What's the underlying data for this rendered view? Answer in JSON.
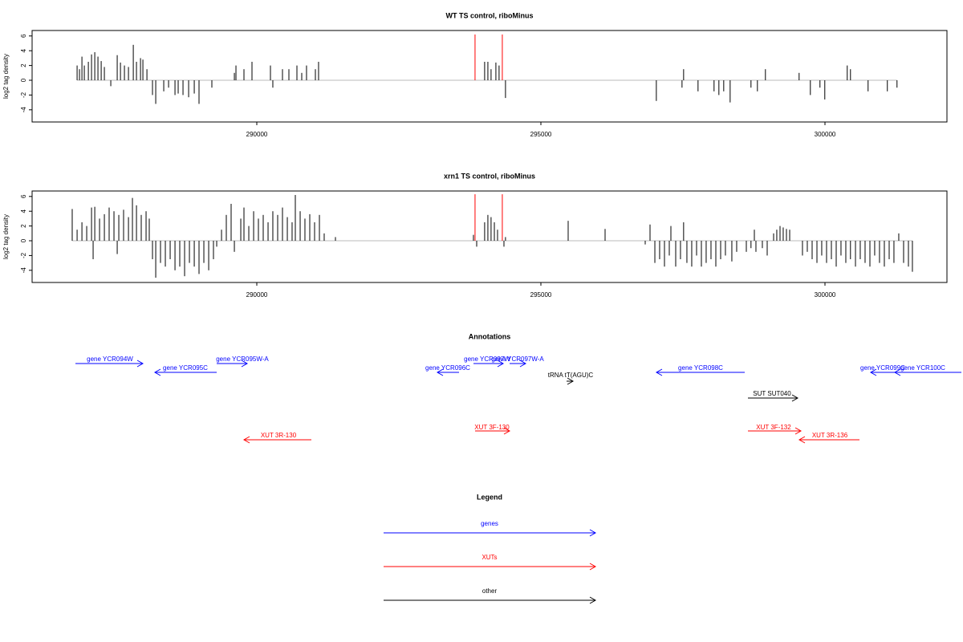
{
  "chart_data": [
    {
      "type": "bar",
      "title": "WT TS control, riboMinus",
      "ylabel": "log2 tag density",
      "xlim": [
        286045,
        302147
      ],
      "ylim": [
        -5.65,
        6.74
      ],
      "xticks": [
        290000,
        295000,
        300000
      ],
      "yticks": [
        -4,
        -2,
        0,
        2,
        4,
        6
      ],
      "series": [
        {
          "color": "#000000",
          "x": [
            286837,
            286879,
            286922,
            286964,
            287035,
            287091,
            287148,
            287204,
            287261,
            287317,
            287430,
            287543,
            287600,
            287670,
            287741,
            287826,
            287882,
            287953,
            287995,
            288066,
            288164,
            288221,
            288362,
            288447,
            288560,
            288616,
            288701,
            288800,
            288899,
            288983,
            289209,
            289605,
            289633,
            289774,
            289915,
            290240,
            290282,
            290452,
            290565,
            290706,
            290791,
            290875,
            291031,
            291087,
            294010,
            294067,
            294123,
            294208,
            294264,
            294377,
            297032,
            297484,
            297512,
            297766,
            298048,
            298133,
            298218,
            298331,
            298698,
            298811,
            298952,
            299545,
            299743,
            299912,
            299997,
            300392,
            300449,
            300759,
            301098,
            301268
          ],
          "values": [
            2,
            1.5,
            3.2,
            2,
            2.5,
            3.5,
            3.8,
            3.2,
            2.6,
            1.8,
            -0.8,
            3.4,
            2.4,
            2,
            1.8,
            4.8,
            2.5,
            3,
            2.8,
            1.5,
            -2,
            -3.2,
            -1.5,
            -1,
            -2,
            -1.8,
            -2,
            -2.3,
            -1.8,
            -3.2,
            -1,
            1,
            2,
            1.5,
            2.5,
            2,
            -1,
            1.5,
            1.5,
            2,
            1,
            2,
            1.5,
            2.5,
            2.5,
            2.5,
            1.5,
            2.4,
            2,
            -2.4,
            -2.8,
            -1,
            1.5,
            -1.5,
            -1.5,
            -2,
            -1.5,
            -3,
            -1,
            -1.5,
            1.5,
            1,
            -2,
            -1,
            -2.6,
            2,
            1.5,
            -1.5,
            -1.5,
            -1
          ]
        },
        {
          "color": "#ff0000",
          "x": [
            293841,
            294321
          ],
          "values": [
            6.2,
            6.2
          ]
        }
      ]
    },
    {
      "type": "bar",
      "title": "xrn1 TS control, riboMinus",
      "ylabel": "log2 tag density",
      "xlim": [
        286045,
        302147
      ],
      "ylim": [
        -5.65,
        6.74
      ],
      "xticks": [
        290000,
        295000,
        300000
      ],
      "yticks": [
        -4,
        -2,
        0,
        2,
        4,
        6
      ],
      "series": [
        {
          "color": "#000000",
          "x": [
            286751,
            286837,
            286922,
            287006,
            287091,
            287119,
            287148,
            287232,
            287317,
            287401,
            287486,
            287543,
            287571,
            287655,
            287741,
            287811,
            287882,
            287966,
            288051,
            288107,
            288164,
            288221,
            288305,
            288390,
            288475,
            288560,
            288644,
            288729,
            288814,
            288899,
            288983,
            289068,
            289153,
            289237,
            289294,
            289379,
            289463,
            289548,
            289605,
            289718,
            289774,
            289859,
            289944,
            290028,
            290113,
            290198,
            290282,
            290367,
            290452,
            290537,
            290621,
            290678,
            290763,
            290847,
            290932,
            291017,
            291102,
            291186,
            291384,
            293813,
            293870,
            294010,
            294067,
            294123,
            294181,
            294237,
            294350,
            294377,
            295480,
            296130,
            296836,
            296921,
            297006,
            297090,
            297175,
            297260,
            297288,
            297373,
            297457,
            297512,
            297570,
            297655,
            297740,
            297825,
            297909,
            297994,
            298079,
            298164,
            298248,
            298361,
            298446,
            298616,
            298698,
            298757,
            298785,
            298898,
            298983,
            299096,
            299152,
            299209,
            299265,
            299322,
            299379,
            299604,
            299689,
            299774,
            299859,
            299943,
            300028,
            300113,
            300198,
            300282,
            300367,
            300449,
            300537,
            300621,
            300706,
            300791,
            300875,
            300960,
            301045,
            301130,
            301214,
            301299,
            301384,
            301469,
            301539
          ],
          "values": [
            4.3,
            1.5,
            2.5,
            2,
            4.5,
            -2.5,
            4.6,
            3,
            3.6,
            4.5,
            4,
            -1.8,
            3.5,
            4.2,
            3.2,
            5.8,
            4.8,
            3.5,
            4,
            3,
            -2.5,
            -5,
            -3,
            -3.5,
            -2.5,
            -4,
            -3.5,
            -4.8,
            -3,
            -3.5,
            -4.5,
            -3,
            -4,
            -2.5,
            -0.8,
            1.5,
            3.5,
            5,
            -1.5,
            3,
            4.5,
            2,
            4,
            3,
            3.5,
            2.5,
            4,
            3.5,
            4.5,
            3.2,
            2.5,
            6.2,
            4,
            3,
            3.6,
            2.5,
            3.5,
            1,
            0.5,
            0.8,
            -0.8,
            2.5,
            3.5,
            3.2,
            2.5,
            1.5,
            -0.8,
            0.5,
            2.7,
            1.6,
            -0.5,
            2.2,
            -3,
            -2.5,
            -3.5,
            -2,
            2,
            -3.5,
            -2.5,
            2.5,
            -3,
            -3.5,
            -2,
            -3.5,
            -3,
            -2.5,
            -3.5,
            -2.5,
            -2,
            -2.8,
            -1.5,
            -1.5,
            -1,
            1.5,
            -1.5,
            -1,
            -2,
            1,
            1.5,
            2,
            1.8,
            1.6,
            1.5,
            -2,
            -1.5,
            -2.5,
            -3,
            -2,
            -3,
            -2.5,
            -3.5,
            -2,
            -3,
            -2.5,
            -3.5,
            -2.5,
            -3,
            -3.5,
            -2,
            -3,
            -3.5,
            -2.5,
            -3,
            1,
            -3,
            -3.5,
            -4.2
          ]
        },
        {
          "color": "#ff0000",
          "x": [
            293841,
            294321
          ],
          "values": [
            6.3,
            6.3
          ]
        }
      ]
    }
  ],
  "annotations": {
    "title": "Annotations",
    "items": [
      {
        "label": "gene YCR094W",
        "color": "#0000ff"
      },
      {
        "label": "gene YCR095C",
        "color": "#0000ff"
      },
      {
        "label": "gene YCR095W-A",
        "color": "#0000ff"
      },
      {
        "label": "gene YCR096C",
        "color": "#0000ff"
      },
      {
        "label": "gene YCR097W",
        "color": "#0000ff"
      },
      {
        "label": "gene YCR097W-A",
        "color": "#0000ff"
      },
      {
        "label": "tRNA tT(AGU)C",
        "color": "#000000"
      },
      {
        "label": "gene YCR098C",
        "color": "#0000ff"
      },
      {
        "label": "gene YCR099C",
        "color": "#0000ff"
      },
      {
        "label": "gene YCR100C",
        "color": "#0000ff"
      },
      {
        "label": "SUT SUT040",
        "color": "#000000"
      },
      {
        "label": "XUT 3R-130",
        "color": "#ff0000"
      },
      {
        "label": "XUT 3F-130",
        "color": "#ff0000"
      },
      {
        "label": "XUT 3F-132",
        "color": "#ff0000"
      },
      {
        "label": "XUT 3R-136",
        "color": "#ff0000"
      }
    ]
  },
  "legend": {
    "title": "Legend",
    "items": [
      {
        "label": "genes",
        "color": "#0000ff"
      },
      {
        "label": "XUTs",
        "color": "#ff0000"
      },
      {
        "label": "other",
        "color": "#000000"
      }
    ]
  }
}
